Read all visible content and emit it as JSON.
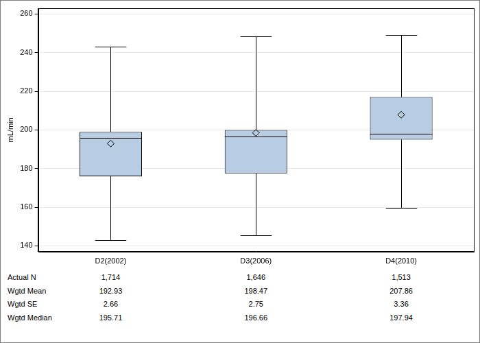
{
  "chart_data": {
    "type": "box",
    "y_label": "mL/min",
    "categories": [
      "D2(2002)",
      "D3(2006)",
      "D4(2010)"
    ],
    "whisker_low": [
      143,
      145.5,
      159.5
    ],
    "q1": [
      176,
      177.5,
      195
    ],
    "median": [
      195.71,
      196.66,
      197.94
    ],
    "q3": [
      199,
      200,
      217
    ],
    "whisker_high": [
      243,
      248.5,
      249
    ],
    "mean": [
      192.93,
      198.47,
      207.86
    ],
    "se": [
      2.66,
      2.75,
      3.36
    ],
    "n": [
      {
        "value": 1714,
        "label": "1,714"
      },
      {
        "value": 1646,
        "label": "1,646"
      },
      {
        "value": 1513,
        "label": "1,513"
      }
    ],
    "row_labels": {
      "n": "Actual N",
      "mean": "Wgtd Mean",
      "se": "Wgtd SE",
      "median": "Wgtd Median"
    },
    "color": "#b8cce4",
    "ylim": [
      137,
      263
    ],
    "yticks": [
      140,
      160,
      180,
      200,
      220,
      240,
      260
    ],
    "grid": true
  }
}
